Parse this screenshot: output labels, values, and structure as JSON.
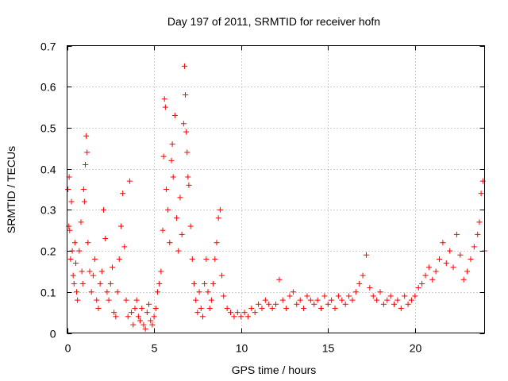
{
  "chart_data": {
    "type": "scatter",
    "title": "Day 197 of 2011, SRMTID for receiver hofn",
    "xlabel": "GPS time / hours",
    "ylabel": "SRMTID / TECUs",
    "xlim": [
      0,
      24
    ],
    "ylim": [
      0,
      0.7
    ],
    "x_ticks": [
      0,
      5,
      10,
      15,
      20
    ],
    "x_tick_labels": [
      "0",
      "5",
      "10",
      "15",
      "20"
    ],
    "y_ticks": [
      0,
      0.1,
      0.2,
      0.3,
      0.4,
      0.5,
      0.6,
      0.7
    ],
    "y_tick_labels": [
      "0",
      "0.1",
      "0.2",
      "0.3",
      "0.4",
      "0.5",
      "0.6",
      "0.7"
    ],
    "grid": true,
    "marker": "plus",
    "color": "#ff0000",
    "series": [
      {
        "name": "SRMTID",
        "points": [
          [
            0.05,
            0.35
          ],
          [
            0.1,
            0.26
          ],
          [
            0.12,
            0.38
          ],
          [
            0.15,
            0.25
          ],
          [
            0.2,
            0.18
          ],
          [
            0.25,
            0.32
          ],
          [
            0.3,
            0.2
          ],
          [
            0.35,
            0.14
          ],
          [
            0.4,
            0.12
          ],
          [
            0.45,
            0.22
          ],
          [
            0.5,
            0.17
          ],
          [
            0.55,
            0.1
          ],
          [
            0.6,
            0.08
          ],
          [
            0.7,
            0.2
          ],
          [
            0.8,
            0.27
          ],
          [
            0.85,
            0.15
          ],
          [
            0.9,
            0.12
          ],
          [
            0.95,
            0.35
          ],
          [
            1.0,
            0.32
          ],
          [
            1.05,
            0.41
          ],
          [
            1.1,
            0.48
          ],
          [
            1.15,
            0.44
          ],
          [
            1.2,
            0.22
          ],
          [
            1.3,
            0.15
          ],
          [
            1.4,
            0.1
          ],
          [
            1.5,
            0.14
          ],
          [
            1.6,
            0.18
          ],
          [
            1.7,
            0.08
          ],
          [
            1.8,
            0.06
          ],
          [
            1.9,
            0.12
          ],
          [
            2.0,
            0.15
          ],
          [
            2.1,
            0.3
          ],
          [
            2.2,
            0.23
          ],
          [
            2.3,
            0.1
          ],
          [
            2.4,
            0.08
          ],
          [
            2.5,
            0.12
          ],
          [
            2.6,
            0.16
          ],
          [
            2.7,
            0.05
          ],
          [
            2.8,
            0.04
          ],
          [
            2.9,
            0.1
          ],
          [
            3.0,
            0.18
          ],
          [
            3.1,
            0.26
          ],
          [
            3.2,
            0.34
          ],
          [
            3.3,
            0.21
          ],
          [
            3.4,
            0.08
          ],
          [
            3.5,
            0.04
          ],
          [
            3.6,
            0.37
          ],
          [
            3.7,
            0.05
          ],
          [
            3.8,
            0.02
          ],
          [
            3.9,
            0.06
          ],
          [
            4.0,
            0.08
          ],
          [
            4.1,
            0.04
          ],
          [
            4.2,
            0.03
          ],
          [
            4.3,
            0.06
          ],
          [
            4.4,
            0.02
          ],
          [
            4.5,
            0.01
          ],
          [
            4.6,
            0.05
          ],
          [
            4.7,
            0.07
          ],
          [
            4.8,
            0.03
          ],
          [
            4.9,
            0.02
          ],
          [
            5.0,
            0.04
          ],
          [
            5.1,
            0.06
          ],
          [
            5.2,
            0.1
          ],
          [
            5.3,
            0.12
          ],
          [
            5.4,
            0.15
          ],
          [
            5.5,
            0.25
          ],
          [
            5.55,
            0.43
          ],
          [
            5.6,
            0.57
          ],
          [
            5.65,
            0.55
          ],
          [
            5.7,
            0.35
          ],
          [
            5.8,
            0.3
          ],
          [
            5.9,
            0.22
          ],
          [
            6.0,
            0.42
          ],
          [
            6.05,
            0.46
          ],
          [
            6.1,
            0.38
          ],
          [
            6.2,
            0.53
          ],
          [
            6.3,
            0.28
          ],
          [
            6.4,
            0.2
          ],
          [
            6.5,
            0.33
          ],
          [
            6.6,
            0.24
          ],
          [
            6.7,
            0.51
          ],
          [
            6.75,
            0.65
          ],
          [
            6.8,
            0.58
          ],
          [
            6.85,
            0.49
          ],
          [
            6.9,
            0.44
          ],
          [
            6.95,
            0.38
          ],
          [
            7.0,
            0.36
          ],
          [
            7.1,
            0.26
          ],
          [
            7.2,
            0.18
          ],
          [
            7.3,
            0.12
          ],
          [
            7.4,
            0.08
          ],
          [
            7.5,
            0.05
          ],
          [
            7.6,
            0.1
          ],
          [
            7.7,
            0.06
          ],
          [
            7.8,
            0.04
          ],
          [
            7.9,
            0.12
          ],
          [
            8.0,
            0.18
          ],
          [
            8.1,
            0.1
          ],
          [
            8.2,
            0.06
          ],
          [
            8.3,
            0.08
          ],
          [
            8.4,
            0.12
          ],
          [
            8.5,
            0.18
          ],
          [
            8.6,
            0.22
          ],
          [
            8.7,
            0.28
          ],
          [
            8.8,
            0.3
          ],
          [
            8.9,
            0.14
          ],
          [
            9.0,
            0.09
          ],
          [
            9.2,
            0.06
          ],
          [
            9.4,
            0.05
          ],
          [
            9.6,
            0.04
          ],
          [
            9.8,
            0.05
          ],
          [
            10.0,
            0.04
          ],
          [
            10.2,
            0.05
          ],
          [
            10.4,
            0.04
          ],
          [
            10.6,
            0.06
          ],
          [
            10.8,
            0.05
          ],
          [
            11.0,
            0.07
          ],
          [
            11.2,
            0.06
          ],
          [
            11.4,
            0.08
          ],
          [
            11.6,
            0.07
          ],
          [
            11.8,
            0.06
          ],
          [
            12.0,
            0.07
          ],
          [
            12.2,
            0.13
          ],
          [
            12.4,
            0.08
          ],
          [
            12.6,
            0.06
          ],
          [
            12.8,
            0.09
          ],
          [
            13.0,
            0.1
          ],
          [
            13.2,
            0.07
          ],
          [
            13.4,
            0.08
          ],
          [
            13.6,
            0.06
          ],
          [
            13.8,
            0.09
          ],
          [
            14.0,
            0.08
          ],
          [
            14.2,
            0.07
          ],
          [
            14.4,
            0.08
          ],
          [
            14.6,
            0.06
          ],
          [
            14.8,
            0.09
          ],
          [
            15.0,
            0.07
          ],
          [
            15.2,
            0.08
          ],
          [
            15.4,
            0.06
          ],
          [
            15.6,
            0.09
          ],
          [
            15.8,
            0.08
          ],
          [
            16.0,
            0.07
          ],
          [
            16.2,
            0.09
          ],
          [
            16.4,
            0.08
          ],
          [
            16.6,
            0.1
          ],
          [
            16.8,
            0.12
          ],
          [
            17.0,
            0.14
          ],
          [
            17.2,
            0.19
          ],
          [
            17.4,
            0.11
          ],
          [
            17.6,
            0.09
          ],
          [
            17.8,
            0.08
          ],
          [
            18.0,
            0.1
          ],
          [
            18.2,
            0.07
          ],
          [
            18.4,
            0.08
          ],
          [
            18.6,
            0.09
          ],
          [
            18.8,
            0.07
          ],
          [
            19.0,
            0.08
          ],
          [
            19.2,
            0.06
          ],
          [
            19.4,
            0.09
          ],
          [
            19.6,
            0.07
          ],
          [
            19.8,
            0.08
          ],
          [
            20.0,
            0.09
          ],
          [
            20.2,
            0.11
          ],
          [
            20.4,
            0.12
          ],
          [
            20.6,
            0.14
          ],
          [
            20.8,
            0.16
          ],
          [
            21.0,
            0.13
          ],
          [
            21.2,
            0.15
          ],
          [
            21.4,
            0.18
          ],
          [
            21.6,
            0.22
          ],
          [
            21.8,
            0.17
          ],
          [
            22.0,
            0.2
          ],
          [
            22.2,
            0.16
          ],
          [
            22.4,
            0.24
          ],
          [
            22.6,
            0.19
          ],
          [
            22.8,
            0.13
          ],
          [
            23.0,
            0.15
          ],
          [
            23.2,
            0.18
          ],
          [
            23.4,
            0.21
          ],
          [
            23.6,
            0.24
          ],
          [
            23.7,
            0.27
          ],
          [
            23.8,
            0.34
          ],
          [
            23.9,
            0.37
          ],
          [
            24.0,
            0.2
          ]
        ]
      }
    ]
  }
}
